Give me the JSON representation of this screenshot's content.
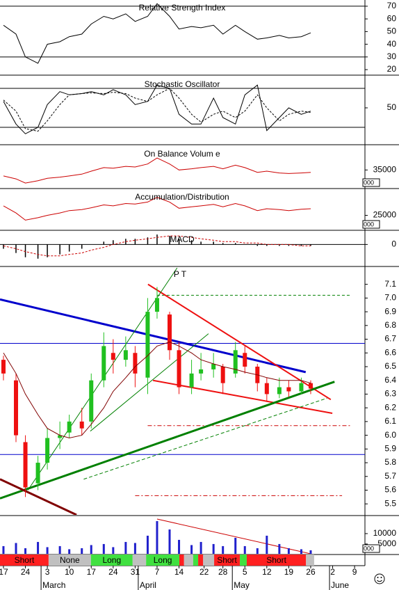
{
  "x_axis": {
    "xlim": [
      -1.1,
      115.3
    ],
    "xticks": [
      {
        "value": 0,
        "label": "17"
      },
      {
        "value": 7,
        "label": "24"
      },
      {
        "value": 14,
        "label": "3"
      },
      {
        "value": 21,
        "label": "10"
      },
      {
        "value": 28,
        "label": "17"
      },
      {
        "value": 35,
        "label": "24"
      },
      {
        "value": 42,
        "label": "31"
      },
      {
        "value": 49,
        "label": "7"
      },
      {
        "value": 56,
        "label": "14"
      },
      {
        "value": 64,
        "label": "22"
      },
      {
        "value": 70,
        "label": "28"
      },
      {
        "value": 77,
        "label": "5"
      },
      {
        "value": 84,
        "label": "12"
      },
      {
        "value": 91,
        "label": "19"
      },
      {
        "value": 98,
        "label": "26"
      },
      {
        "value": 105,
        "label": "2"
      },
      {
        "value": 112,
        "label": "9"
      }
    ],
    "months": [
      {
        "value": 12,
        "label": "March"
      },
      {
        "value": 43,
        "label": "April"
      },
      {
        "value": 73,
        "label": "May"
      },
      {
        "value": 104,
        "label": "June"
      }
    ]
  },
  "chart_data": [
    {
      "type": "line",
      "title": "Relative Strength Index",
      "ylim": [
        16.2,
        74.9
      ],
      "yticks": [
        20,
        30,
        40,
        50,
        60,
        70
      ],
      "levels": [
        30,
        70
      ],
      "x": [
        0,
        4,
        7,
        11,
        14,
        18,
        21,
        25,
        28,
        32,
        35,
        39,
        42,
        46,
        49,
        53,
        56,
        60,
        63,
        67,
        70,
        74,
        77,
        81,
        84,
        88,
        91,
        95,
        98
      ],
      "series": [
        {
          "color": "#000000",
          "values": [
            55,
            48,
            30,
            25,
            40,
            42,
            46,
            48,
            56,
            62,
            60,
            64,
            58,
            62,
            72,
            62,
            52,
            54,
            53,
            55,
            48,
            55,
            50,
            44,
            45,
            47,
            45,
            46,
            49
          ]
        }
      ]
    },
    {
      "type": "line",
      "title": "Stochastic Oscillator",
      "ylim": [
        -5.7,
        98.2
      ],
      "yticks": [
        50
      ],
      "levels": [
        20,
        80
      ],
      "x": [
        0,
        4,
        7,
        11,
        14,
        18,
        21,
        25,
        28,
        32,
        35,
        39,
        42,
        46,
        49,
        53,
        56,
        60,
        63,
        67,
        70,
        74,
        77,
        81,
        84,
        88,
        91,
        95,
        98
      ],
      "series": [
        {
          "color": "#000000",
          "values": [
            60,
            25,
            10,
            20,
            55,
            75,
            70,
            72,
            75,
            70,
            78,
            70,
            55,
            60,
            85,
            80,
            40,
            25,
            25,
            65,
            35,
            25,
            70,
            85,
            15,
            35,
            50,
            40,
            45
          ]
        },
        {
          "color": "#000000",
          "dash": true,
          "values": [
            62,
            45,
            18,
            14,
            30,
            55,
            70,
            72,
            73,
            72,
            74,
            72,
            65,
            60,
            70,
            80,
            65,
            40,
            28,
            40,
            45,
            35,
            45,
            70,
            50,
            30,
            40,
            45,
            43
          ]
        }
      ]
    },
    {
      "type": "line",
      "title": "On Balance Volum e",
      "ylim": [
        32000,
        39000
      ],
      "yticks": [
        35000
      ],
      "unit": "000",
      "x": [
        0,
        4,
        7,
        11,
        14,
        18,
        21,
        25,
        28,
        32,
        35,
        39,
        42,
        46,
        49,
        53,
        56,
        60,
        63,
        67,
        70,
        74,
        77,
        81,
        84,
        88,
        91,
        95,
        98
      ],
      "series": [
        {
          "color": "#cc0000",
          "values": [
            34000,
            33500,
            32800,
            33200,
            33600,
            33800,
            34000,
            34300,
            34800,
            35400,
            35300,
            35600,
            35500,
            36000,
            37000,
            36000,
            35000,
            35200,
            35400,
            35600,
            35200,
            35800,
            35400,
            34600,
            34800,
            34500,
            34400,
            34500,
            34600
          ]
        }
      ]
    },
    {
      "type": "line",
      "title": "Accumulation/Distribution",
      "ylim": [
        22000,
        30500
      ],
      "yticks": [
        25000
      ],
      "unit": "000",
      "x": [
        0,
        4,
        7,
        11,
        14,
        18,
        21,
        25,
        28,
        32,
        35,
        39,
        42,
        46,
        49,
        53,
        56,
        60,
        63,
        67,
        70,
        74,
        77,
        81,
        84,
        88,
        91,
        95,
        98
      ],
      "series": [
        {
          "color": "#cc0000",
          "values": [
            27000,
            25500,
            24000,
            24500,
            25000,
            25500,
            26000,
            26200,
            26600,
            27200,
            27000,
            27500,
            27400,
            27800,
            28800,
            27800,
            26500,
            26800,
            27000,
            27300,
            26800,
            27500,
            27000,
            26000,
            26400,
            26200,
            26000,
            26300,
            26400
          ]
        }
      ]
    },
    {
      "type": "macd",
      "title": "MACD",
      "ylim": [
        -0.15,
        0.09
      ],
      "yticks": [
        0
      ],
      "x": [
        0,
        4,
        7,
        11,
        14,
        18,
        21,
        25,
        28,
        32,
        35,
        39,
        42,
        46,
        49,
        53,
        56,
        60,
        63,
        67,
        70,
        74,
        77,
        81,
        84,
        88,
        91,
        95,
        98
      ],
      "histogram": {
        "color": "#000000",
        "values": [
          -0.03,
          -0.06,
          -0.09,
          -0.1,
          -0.09,
          -0.07,
          -0.05,
          -0.03,
          0,
          0.02,
          0.03,
          0.04,
          0.04,
          0.05,
          0.07,
          0.06,
          0.04,
          0.03,
          0.02,
          0.02,
          0.01,
          0.01,
          0,
          -0.01,
          -0.01,
          -0.01,
          -0.01,
          -0.01,
          -0.01
        ]
      },
      "series": [
        {
          "color": "#cc0000",
          "dash": true,
          "values": [
            -0.01,
            -0.03,
            -0.05,
            -0.07,
            -0.08,
            -0.08,
            -0.07,
            -0.06,
            -0.04,
            -0.02,
            0,
            0.02,
            0.03,
            0.04,
            0.05,
            0.06,
            0.06,
            0.05,
            0.04,
            0.03,
            0.02,
            0.02,
            0.01,
            0.01,
            0,
            0,
            0,
            -0.01,
            -0.01
          ]
        }
      ]
    },
    {
      "type": "candlestick",
      "ylim": [
        5.42,
        7.23
      ],
      "yticks": [
        5.5,
        5.6,
        5.7,
        5.8,
        5.9,
        {
          "value": 6,
          "label": "6.0"
        },
        6.1,
        6.2,
        6.3,
        6.4,
        6.5,
        6.6,
        6.7,
        6.8,
        6.9,
        {
          "value": 7,
          "label": "7.0"
        },
        7.1
      ],
      "up_color": "#20c020",
      "down_color": "#ee1010",
      "x": [
        0,
        4,
        7,
        11,
        14,
        18,
        21,
        25,
        28,
        32,
        35,
        39,
        42,
        46,
        49,
        53,
        56,
        60,
        63,
        67,
        70,
        74,
        77,
        81,
        84,
        88,
        91,
        95,
        98
      ],
      "open": [
        6.55,
        6.4,
        5.95,
        5.65,
        5.8,
        5.98,
        6.02,
        6.1,
        6.1,
        6.4,
        6.6,
        6.55,
        6.6,
        6.42,
        6.9,
        6.88,
        6.62,
        6.35,
        6.45,
        6.48,
        6.5,
        6.45,
        6.6,
        6.5,
        6.38,
        6.3,
        6.35,
        6.32,
        6.38
      ],
      "close": [
        6.45,
        6.0,
        5.62,
        5.8,
        5.98,
        6.0,
        6.1,
        6.05,
        6.4,
        6.65,
        6.55,
        6.62,
        6.45,
        6.9,
        7.0,
        6.62,
        6.35,
        6.45,
        6.48,
        6.52,
        6.38,
        6.62,
        6.5,
        6.38,
        6.3,
        6.35,
        6.32,
        6.38,
        6.34
      ],
      "high": [
        6.58,
        6.45,
        6.0,
        5.85,
        6.05,
        6.1,
        6.15,
        6.2,
        6.45,
        6.75,
        6.7,
        6.72,
        6.65,
        7.0,
        7.08,
        6.9,
        6.68,
        6.55,
        6.6,
        6.6,
        6.52,
        6.68,
        6.65,
        6.52,
        6.42,
        6.42,
        6.4,
        6.42,
        6.4
      ],
      "low": [
        6.4,
        5.95,
        5.55,
        5.6,
        5.75,
        5.9,
        5.98,
        6.0,
        6.05,
        6.35,
        6.45,
        6.5,
        6.35,
        6.3,
        6.85,
        6.55,
        6.3,
        6.3,
        6.4,
        6.42,
        6.3,
        6.42,
        6.45,
        6.32,
        6.25,
        6.27,
        6.28,
        6.3,
        6.3
      ],
      "series": [
        {
          "color": "#800000",
          "values": [
            6.6,
            6.45,
            6.3,
            6.15,
            6.05,
            6.0,
            5.98,
            6.0,
            6.08,
            6.2,
            6.32,
            6.42,
            6.5,
            6.58,
            6.65,
            6.68,
            6.65,
            6.6,
            6.55,
            6.52,
            6.5,
            6.48,
            6.46,
            6.44,
            6.42,
            6.4,
            6.4,
            6.4,
            6.38
          ]
        }
      ],
      "hlines": [
        {
          "value": 6.67,
          "color": "#0000cc"
        },
        {
          "value": 5.86,
          "color": "#0000cc"
        },
        {
          "value": 7.02,
          "color": "#008000",
          "style": "dashed",
          "start": 49,
          "end": 111
        },
        {
          "value": 6.07,
          "color": "#cc0000",
          "style": "dashdot",
          "start": 46,
          "end": 111
        },
        {
          "value": 5.56,
          "color": "#cc0000",
          "style": "dashdot",
          "start": 42,
          "end": 108
        }
      ],
      "trendlines": [
        {
          "x": [
            -1.1,
            96.4
          ],
          "y": [
            6.99,
            6.46
          ],
          "color": "#0000cc",
          "width": 3
        },
        {
          "x": [
            46.1,
            104.4
          ],
          "y": [
            7.1,
            6.26
          ],
          "color": "#ee1010",
          "width": 2
        },
        {
          "x": [
            47.7,
            104.9
          ],
          "y": [
            6.4,
            6.16
          ],
          "color": "#ee1010",
          "width": 2
        },
        {
          "x": [
            -1.1,
            105.6
          ],
          "y": [
            5.54,
            6.39
          ],
          "color": "#008000",
          "width": 3
        },
        {
          "x": [
            25.6,
            103.2
          ],
          "y": [
            5.68,
            6.27
          ],
          "color": "#008000",
          "width": 1,
          "dash": true
        },
        {
          "x": [
            7.8,
            55.4
          ],
          "y": [
            5.6,
            7.22
          ],
          "color": "#008000",
          "width": 1
        },
        {
          "x": [
            27.7,
            65.4
          ],
          "y": [
            6.03,
            6.74
          ],
          "color": "#008000",
          "width": 1
        },
        {
          "x": [
            -1.1,
            23.3
          ],
          "y": [
            5.68,
            5.42
          ],
          "color": "#800000",
          "width": 3
        }
      ],
      "annotation": {
        "text": "P T",
        "x": 54.3,
        "y": 7.17
      }
    },
    {
      "type": "bar",
      "ylim": [
        300,
        18000
      ],
      "yticks": [
        5000,
        10000
      ],
      "unit": "000",
      "color": "#2020cc",
      "x": [
        0,
        4,
        7,
        11,
        14,
        18,
        21,
        25,
        28,
        32,
        35,
        39,
        42,
        46,
        49,
        53,
        56,
        60,
        63,
        67,
        70,
        74,
        77,
        81,
        84,
        88,
        91,
        95,
        98
      ],
      "values": [
        4000,
        5500,
        3000,
        6000,
        3500,
        4000,
        2500,
        3000,
        4500,
        5000,
        3500,
        6000,
        5500,
        9000,
        16000,
        12000,
        7000,
        4500,
        6000,
        5000,
        4000,
        8000,
        4000,
        3000,
        9000,
        5000,
        3000,
        2500,
        2000
      ],
      "trendlines": [
        {
          "x": [
            49,
            98
          ],
          "y": [
            17000,
            300
          ],
          "color": "#cc0000",
          "width": 1
        }
      ]
    },
    {
      "type": "signals",
      "segments": [
        {
          "start": -1.1,
          "end": 14.4,
          "color": "#ff2020",
          "label": "Short"
        },
        {
          "start": 14.4,
          "end": 27.9,
          "color": "#c0c0c0",
          "label": "None"
        },
        {
          "start": 27.9,
          "end": 41.2,
          "color": "#40e040",
          "label": "Long"
        },
        {
          "start": 41.2,
          "end": 45.5,
          "color": "#c0c0c0"
        },
        {
          "start": 45.5,
          "end": 56.1,
          "color": "#40e040",
          "label": "Long"
        },
        {
          "start": 56.1,
          "end": 57.6,
          "color": "#ff2020"
        },
        {
          "start": 57.6,
          "end": 60.5,
          "color": "#c0c0c0"
        },
        {
          "start": 60.5,
          "end": 62.1,
          "color": "#40e040"
        },
        {
          "start": 62.1,
          "end": 63.7,
          "color": "#ff2020"
        },
        {
          "start": 63.7,
          "end": 67.2,
          "color": "#c0c0c0"
        },
        {
          "start": 67.2,
          "end": 75.4,
          "color": "#ff2020",
          "label": "Short"
        },
        {
          "start": 75.4,
          "end": 77.6,
          "color": "#40e040"
        },
        {
          "start": 77.6,
          "end": 96.5,
          "color": "#ff2020",
          "label": "Short"
        },
        {
          "start": 96.5,
          "end": 99.1,
          "color": "#c0c0c0"
        }
      ]
    }
  ]
}
